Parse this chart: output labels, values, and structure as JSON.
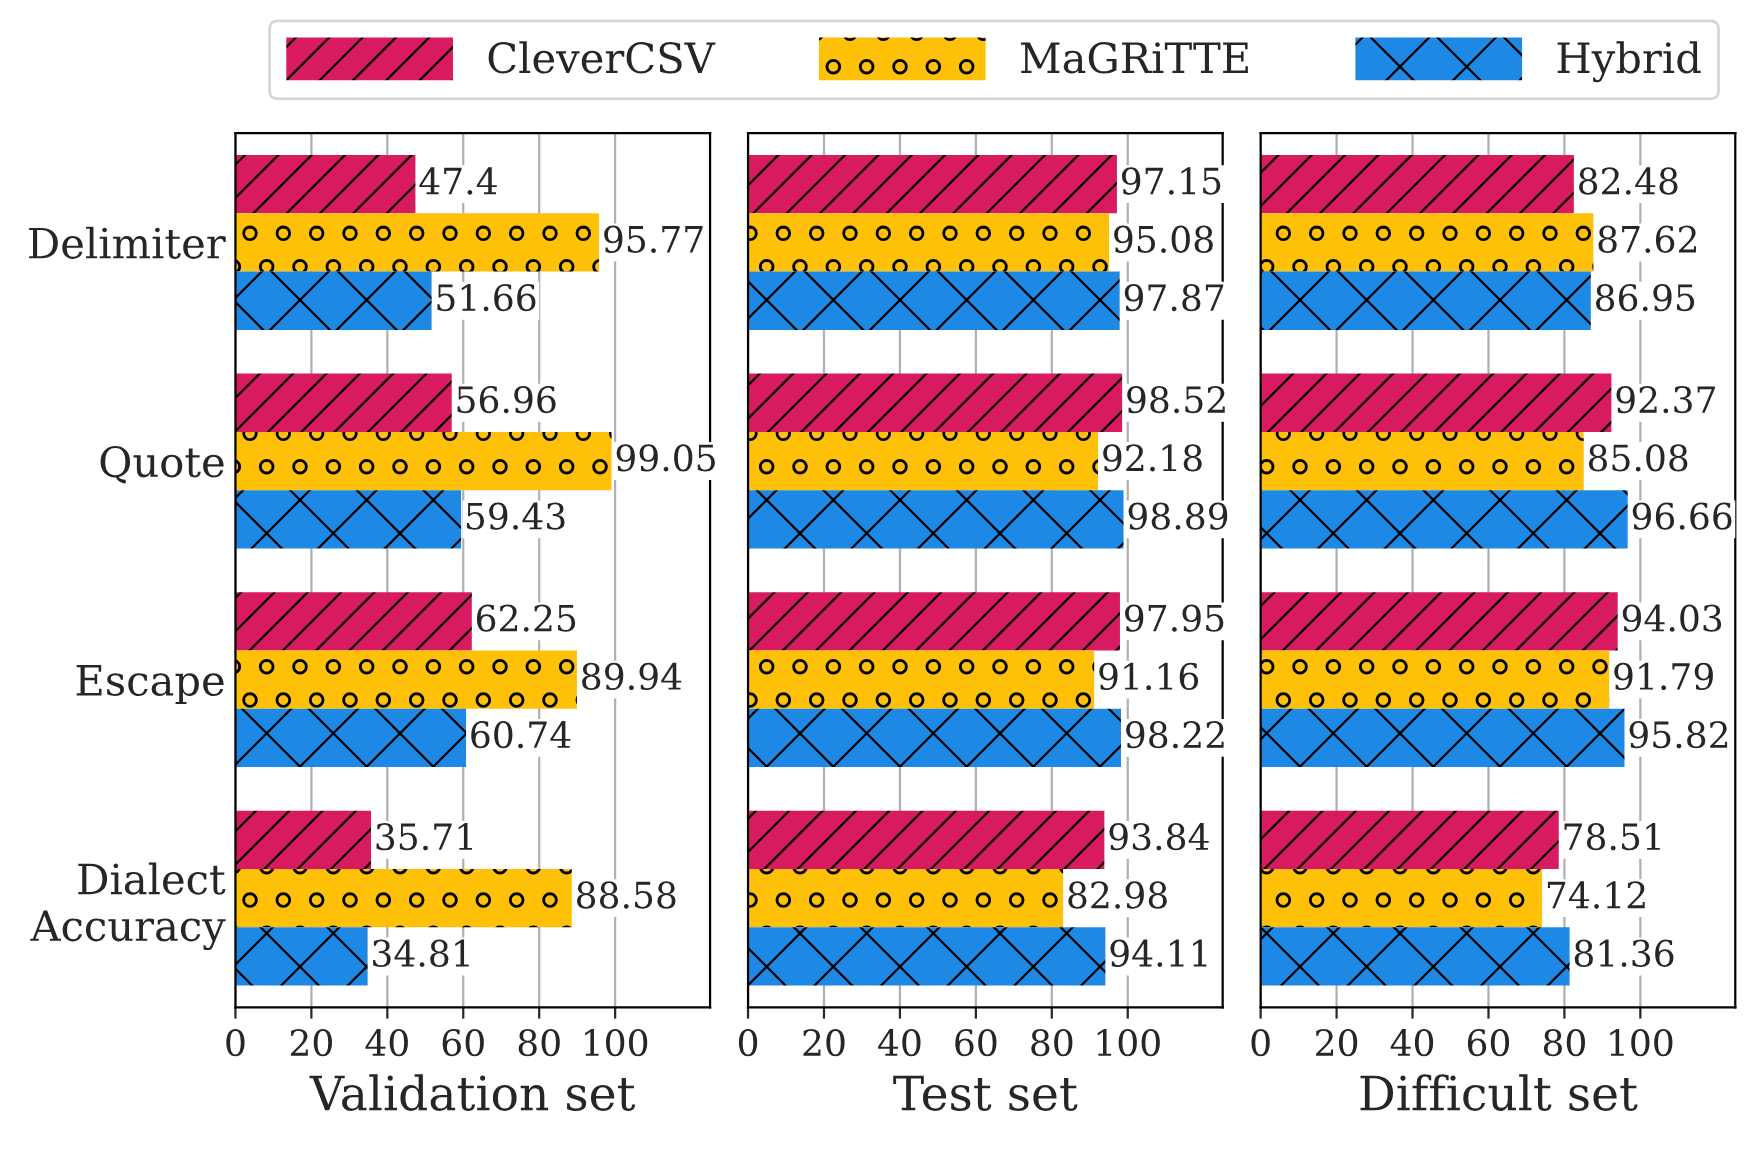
{
  "chart_data": [
    {
      "type": "bar",
      "orientation": "horizontal",
      "xlabel": "Validation set",
      "categories": [
        "Delimiter",
        "Quote",
        "Escape",
        "Dialect\nAccuracy"
      ],
      "xlim": [
        0,
        125
      ],
      "xticks": [
        0,
        20,
        40,
        60,
        80,
        100
      ],
      "grid": "x",
      "data_labels": true,
      "legend": "top",
      "series": [
        {
          "name": "CleverCSV",
          "color": "#d81b60",
          "values": [
            47.4,
            56.96,
            62.25,
            35.71
          ]
        },
        {
          "name": "MaGRiTTE",
          "color": "#ffc107",
          "values": [
            95.77,
            99.05,
            89.94,
            88.58
          ]
        },
        {
          "name": "Hybrid",
          "color": "#1e88e5",
          "values": [
            51.66,
            59.43,
            60.74,
            34.81
          ]
        }
      ]
    },
    {
      "type": "bar",
      "orientation": "horizontal",
      "xlabel": "Test set",
      "xlim": [
        0,
        125
      ],
      "xticks": [
        0,
        20,
        40,
        60,
        80,
        100
      ],
      "grid": "x",
      "data_labels": true,
      "tick_labels": "x",
      "series": [
        {
          "color": "#d81b60",
          "values": [
            97.15,
            98.52,
            97.95,
            93.84
          ]
        },
        {
          "color": "#ffc107",
          "values": [
            95.08,
            92.18,
            91.16,
            82.98
          ]
        },
        {
          "color": "#1e88e5",
          "values": [
            97.87,
            98.89,
            98.22,
            94.11
          ]
        }
      ]
    },
    {
      "type": "bar",
      "orientation": "horizontal",
      "xlabel": "Difficult set",
      "xlim": [
        0,
        125
      ],
      "xticks": [
        0,
        20,
        40,
        60,
        80,
        100
      ],
      "grid": "x",
      "data_labels": true,
      "tick_labels": "x",
      "series": [
        {
          "color": "#d81b60",
          "values": [
            82.48,
            92.37,
            94.03,
            78.51
          ]
        },
        {
          "color": "#ffc107",
          "values": [
            87.62,
            85.08,
            91.79,
            74.12
          ]
        },
        {
          "color": "#1e88e5",
          "values": [
            86.95,
            96.66,
            95.82,
            81.36
          ]
        }
      ]
    }
  ]
}
